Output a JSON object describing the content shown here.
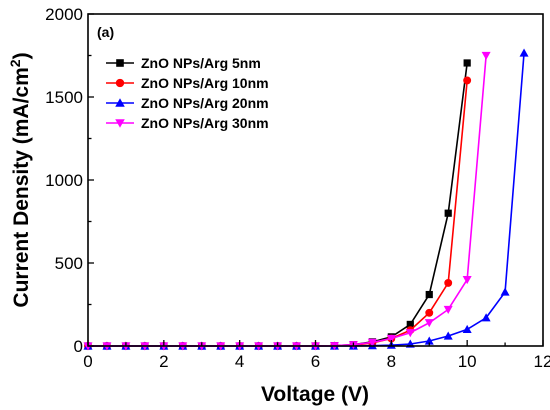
{
  "chart_data": {
    "type": "line",
    "panel_label": "(a)",
    "xlabel": "Voltage (V)",
    "ylabel_main": "Current Density (mA/cm",
    "ylabel_sup": "2",
    "ylabel_close": ")",
    "xlim": [
      0,
      12
    ],
    "ylim": [
      0,
      2000
    ],
    "xticks": [
      "0",
      "2",
      "4",
      "6",
      "8",
      "10",
      "12"
    ],
    "yticks": [
      "0",
      "500",
      "1000",
      "1500",
      "2000"
    ],
    "grid": false,
    "legend_position": "top-left",
    "series": [
      {
        "name": "ZnO NPs/Arg 5nm",
        "color": "#000000",
        "marker": "square",
        "x": [
          0,
          0.5,
          1,
          1.5,
          2,
          2.5,
          3,
          3.5,
          4,
          4.5,
          5,
          5.5,
          6,
          6.5,
          7,
          7.5,
          8,
          8.5,
          9,
          9.5,
          10
        ],
        "y": [
          0,
          0,
          0,
          0,
          0,
          0,
          0,
          0,
          0,
          0,
          0,
          0,
          0,
          2,
          8,
          25,
          55,
          130,
          310,
          800,
          1705
        ]
      },
      {
        "name": "ZnO NPs/Arg 10nm",
        "color": "#ff0000",
        "marker": "circle",
        "x": [
          0,
          0.5,
          1,
          1.5,
          2,
          2.5,
          3,
          3.5,
          4,
          4.5,
          5,
          5.5,
          6,
          6.5,
          7,
          7.5,
          8,
          8.5,
          9,
          9.5,
          10
        ],
        "y": [
          0,
          0,
          0,
          0,
          0,
          0,
          0,
          0,
          0,
          0,
          0,
          0,
          0,
          1,
          5,
          18,
          45,
          95,
          200,
          380,
          1600
        ]
      },
      {
        "name": "ZnO NPs/Arg 20nm",
        "color": "#0000ff",
        "marker": "triangle-up",
        "x": [
          0,
          0.5,
          1,
          1.5,
          2,
          2.5,
          3,
          3.5,
          4,
          4.5,
          5,
          5.5,
          6,
          6.5,
          7,
          7.5,
          8,
          8.5,
          9,
          9.5,
          10,
          10.5,
          11,
          11.5
        ],
        "y": [
          0,
          0,
          0,
          0,
          0,
          0,
          0,
          0,
          0,
          0,
          0,
          0,
          0,
          0,
          0,
          2,
          5,
          12,
          30,
          60,
          100,
          170,
          325,
          1765
        ]
      },
      {
        "name": "ZnO NPs/Arg 30nm",
        "color": "#ff00ff",
        "marker": "triangle-down",
        "x": [
          0,
          0.5,
          1,
          1.5,
          2,
          2.5,
          3,
          3.5,
          4,
          4.5,
          5,
          5.5,
          6,
          6.5,
          7,
          7.5,
          8,
          8.5,
          9,
          9.5,
          10,
          10.5
        ],
        "y": [
          0,
          0,
          0,
          0,
          0,
          0,
          0,
          0,
          0,
          0,
          0,
          0,
          0,
          2,
          8,
          22,
          45,
          80,
          140,
          220,
          400,
          1750
        ]
      }
    ]
  }
}
